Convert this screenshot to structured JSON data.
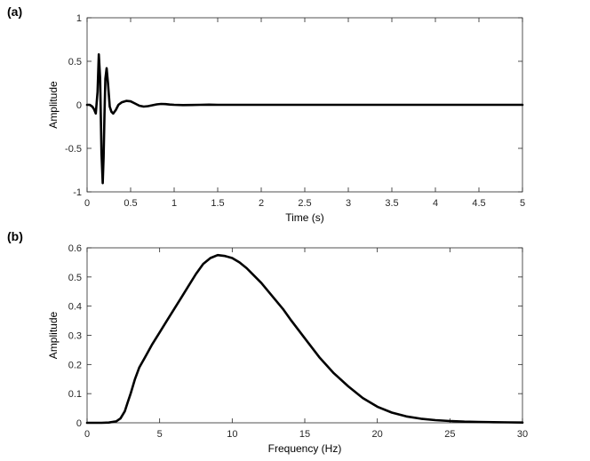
{
  "chart_data": [
    {
      "panel_label": "(a)",
      "type": "line",
      "xlabel": "Time (s)",
      "ylabel": "Amplitude",
      "xlim": [
        0,
        5
      ],
      "ylim": [
        -1,
        1
      ],
      "xticks": [
        "0",
        "0.5",
        "1",
        "1.5",
        "2",
        "2.5",
        "3",
        "3.5",
        "4",
        "4.5",
        "5"
      ],
      "yticks": [
        "-1",
        "-0.5",
        "0",
        "0.5",
        "1"
      ],
      "grid": false,
      "line_color": "#000000",
      "series": [
        {
          "x": [
            0,
            0.03,
            0.06,
            0.08,
            0.1,
            0.12,
            0.135,
            0.15,
            0.165,
            0.18,
            0.19,
            0.2,
            0.21,
            0.225,
            0.24,
            0.26,
            0.28,
            0.3,
            0.33,
            0.36,
            0.4,
            0.45,
            0.5,
            0.55,
            0.6,
            0.65,
            0.7,
            0.75,
            0.8,
            0.85,
            0.9,
            0.95,
            1.0,
            1.1,
            1.2,
            1.3,
            1.4,
            1.5,
            2,
            2.5,
            3,
            3.5,
            4,
            4.5,
            5
          ],
          "y": [
            0,
            0.0,
            -0.02,
            -0.05,
            -0.1,
            0.15,
            0.58,
            0.3,
            -0.55,
            -0.9,
            -0.6,
            -0.1,
            0.3,
            0.42,
            0.25,
            -0.02,
            -0.08,
            -0.1,
            -0.06,
            0.0,
            0.03,
            0.045,
            0.04,
            0.015,
            -0.01,
            -0.02,
            -0.015,
            -0.005,
            0.005,
            0.01,
            0.008,
            0.003,
            0.0,
            -0.003,
            -0.002,
            0.0,
            0.002,
            0.0,
            0,
            0,
            0,
            0,
            0,
            0,
            0
          ]
        }
      ]
    },
    {
      "panel_label": "(b)",
      "type": "line",
      "xlabel": "Frequency (Hz)",
      "ylabel": "Amplitude",
      "xlim": [
        0,
        30
      ],
      "ylim": [
        0,
        0.6
      ],
      "xticks": [
        "0",
        "5",
        "10",
        "15",
        "20",
        "25",
        "30"
      ],
      "yticks": [
        "0",
        "0.1",
        "0.2",
        "0.3",
        "0.4",
        "0.5",
        "0.6"
      ],
      "grid": false,
      "line_color": "#000000",
      "series": [
        {
          "x": [
            0,
            1,
            1.5,
            2,
            2.3,
            2.6,
            2.8,
            3.0,
            3.3,
            3.6,
            4,
            4.5,
            5,
            5.5,
            6,
            6.5,
            7,
            7.5,
            8,
            8.5,
            9,
            9.5,
            10,
            10.5,
            11,
            11.5,
            12,
            12.5,
            13,
            13.5,
            14,
            15,
            16,
            17,
            18,
            19,
            20,
            21,
            22,
            23,
            24,
            25,
            26,
            27,
            28,
            29,
            30
          ],
          "y": [
            0,
            0.0,
            0.001,
            0.005,
            0.015,
            0.04,
            0.07,
            0.1,
            0.15,
            0.19,
            0.225,
            0.27,
            0.31,
            0.35,
            0.39,
            0.43,
            0.47,
            0.51,
            0.545,
            0.565,
            0.575,
            0.572,
            0.565,
            0.55,
            0.53,
            0.505,
            0.48,
            0.45,
            0.42,
            0.39,
            0.355,
            0.29,
            0.225,
            0.17,
            0.125,
            0.085,
            0.055,
            0.035,
            0.022,
            0.014,
            0.009,
            0.006,
            0.004,
            0.003,
            0.002,
            0.0015,
            0.001
          ]
        }
      ]
    }
  ]
}
